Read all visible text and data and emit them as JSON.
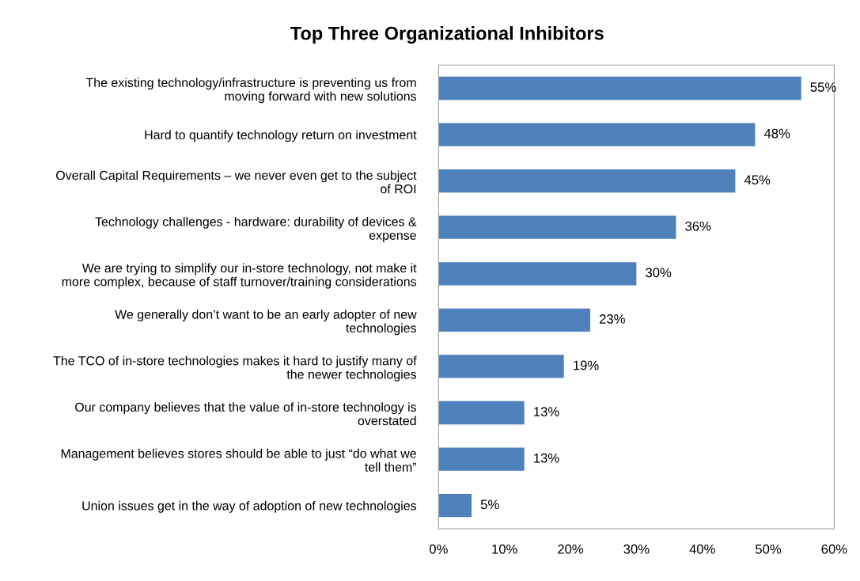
{
  "chart_data": {
    "type": "bar",
    "orientation": "horizontal",
    "title": "Top Three Organizational Inhibitors",
    "categories": [
      "The existing technology/infrastructure is preventing us from\nmoving forward with new solutions",
      "Hard to quantify technology return on investment",
      "Overall Capital Requirements – we never even get to the subject\nof ROI",
      "Technology challenges - hardware: durability of devices &\nexpense",
      "We are trying to simplify our in-store technology, not make it\nmore complex, because of staff turnover/training considerations",
      "We generally don’t want to be an early adopter of new\ntechnologies",
      "The TCO of in-store technologies makes it hard to justify many of\nthe newer technologies",
      "Our company believes that the value of in-store technology is\noverstated",
      "Management believes stores should be able to just “do what we\ntell them”",
      "Union issues get in the way of adoption of new technologies"
    ],
    "values": [
      55,
      48,
      45,
      36,
      30,
      23,
      19,
      13,
      13,
      5
    ],
    "value_labels": [
      "55%",
      "48%",
      "45%",
      "36%",
      "30%",
      "23%",
      "19%",
      "13%",
      "13%",
      "5%"
    ],
    "color": "#4f81bd",
    "xlim": [
      0,
      60
    ],
    "xticks": [
      {
        "value": 0,
        "label": "0%"
      },
      {
        "value": 10,
        "label": "10%"
      },
      {
        "value": 20,
        "label": "20%"
      },
      {
        "value": 30,
        "label": "30%"
      },
      {
        "value": 40,
        "label": "40%"
      },
      {
        "value": 50,
        "label": "50%"
      },
      {
        "value": 60,
        "label": "60%"
      }
    ],
    "grid": false,
    "legend": false
  }
}
